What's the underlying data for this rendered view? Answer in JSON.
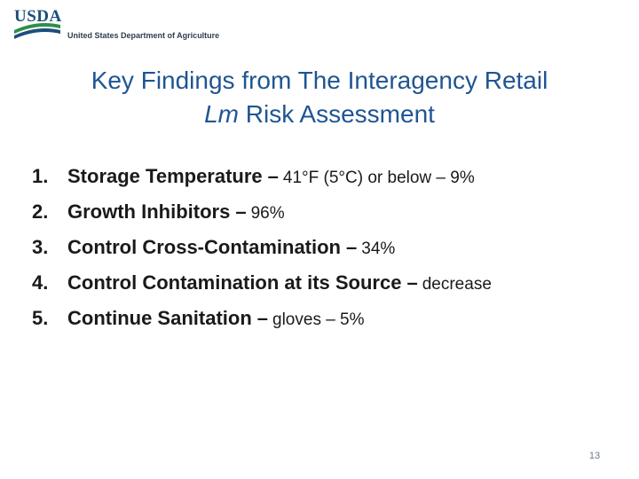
{
  "header": {
    "logo_text": "USDA",
    "agency_name": "United States Department of Agriculture",
    "colors": {
      "logo_blue": "#1a4f7a",
      "logo_green": "#2f8f46"
    }
  },
  "title": {
    "line1": "Key Findings from The Interagency Retail",
    "line2_italic": "Lm",
    "line2_rest": " Risk Assessment",
    "color": "#1f5592"
  },
  "findings": [
    {
      "number": "1.",
      "heading": "Storage Temperature",
      "dash": "–",
      "detail": "41°F (5°C) or below – 9%"
    },
    {
      "number": "2.",
      "heading": "Growth Inhibitors",
      "dash": "–",
      "detail": "96%"
    },
    {
      "number": "3.",
      "heading": "Control Cross-Contamination",
      "dash": "–",
      "detail": "34%"
    },
    {
      "number": "4.",
      "heading": "Control Contamination at its Source",
      "dash": "–",
      "detail": "decrease"
    },
    {
      "number": "5.",
      "heading": "Continue Sanitation",
      "dash": "–",
      "detail": "gloves – 5%"
    }
  ],
  "footer": {
    "page_number": "13"
  }
}
